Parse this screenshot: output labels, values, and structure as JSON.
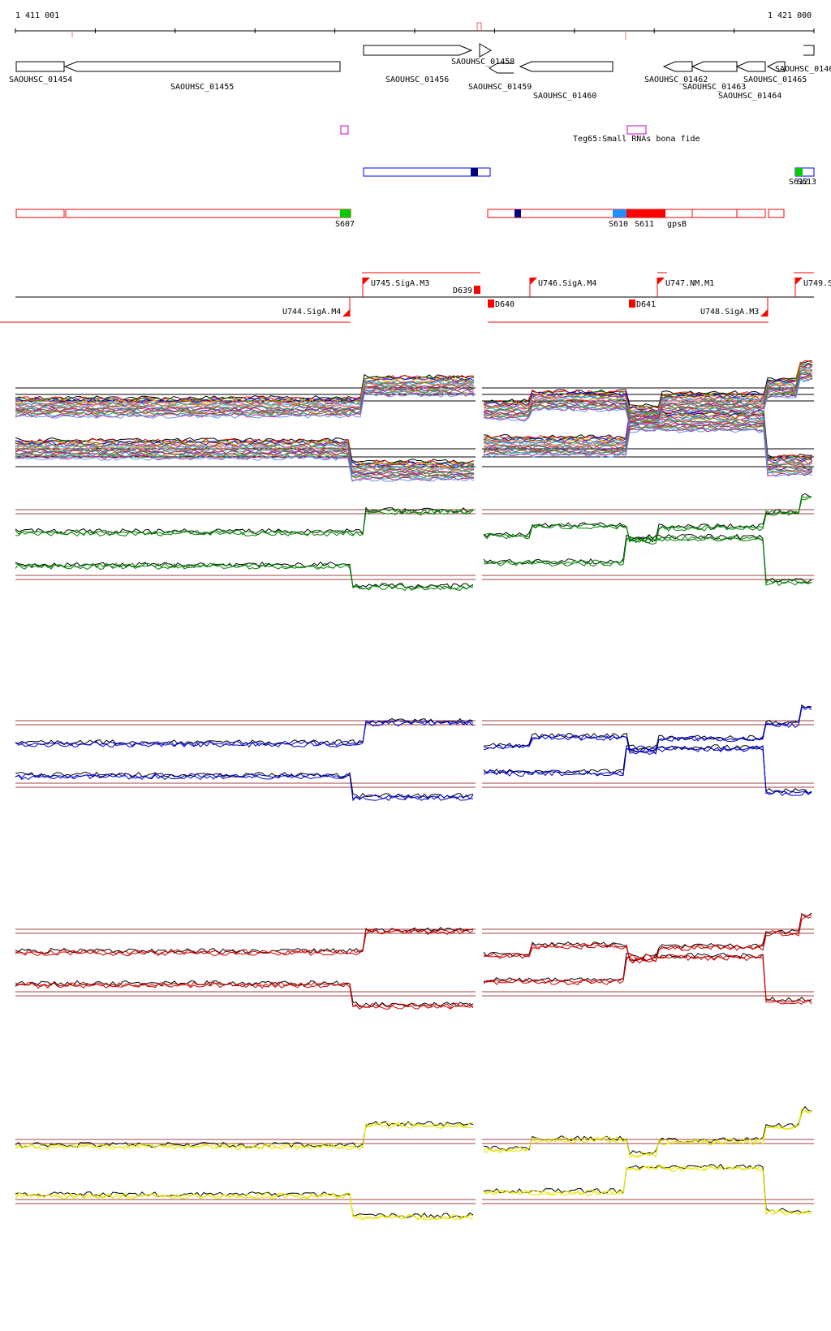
{
  "axis": {
    "start_label": "1 411 001",
    "end_label": "1 421 000",
    "start_bp": 1411001,
    "end_bp": 1421000
  },
  "colors": {
    "gene": "#000000",
    "feature_red": "#ff0000",
    "feature_blue": "#0000ff",
    "navy": "#000080",
    "green": "#00cc00",
    "light_blue": "#1e90ff",
    "magenta": "#cc00cc",
    "track_green": "#008000",
    "track_blue": "#0000cc",
    "track_red": "#cc0000",
    "track_yellow": "#e6e600",
    "threshold": "#a04040"
  },
  "genes": [
    {
      "label": "SAOUHSC_01454"
    },
    {
      "label": "SAOUHSC_01455"
    },
    {
      "label": "SAOUHSC_01456"
    },
    {
      "label": "SAOUHSC_01458"
    },
    {
      "label": "SAOUHSC_01459"
    },
    {
      "label": "SAOUHSC_01460"
    },
    {
      "label": "SAOUHSC_01462"
    },
    {
      "label": "SAOUHSC_01463"
    },
    {
      "label": "SAOUHSC_01464"
    },
    {
      "label": "SAOUHSC_01465"
    },
    {
      "label": "SAOUHSC_0146"
    }
  ],
  "small_rna": {
    "label": "Teg65:Small RNAs bona fide"
  },
  "segments": [
    {
      "label": "S607"
    },
    {
      "label": "S610"
    },
    {
      "label": "S611"
    },
    {
      "label": "gpsB"
    },
    {
      "label": "S612"
    },
    {
      "label": "S613"
    }
  ],
  "promoters": [
    {
      "label": "U745.SigA.M3"
    },
    {
      "label": "U746.SigA.M4"
    },
    {
      "label": "U747.NM.M1"
    },
    {
      "label": "U749.S"
    },
    {
      "label": "U744.SigA.M4"
    },
    {
      "label": "U748.SigA.M3"
    }
  ],
  "terminators": [
    {
      "label": "D639"
    },
    {
      "label": "D640"
    },
    {
      "label": "D641"
    }
  ]
}
